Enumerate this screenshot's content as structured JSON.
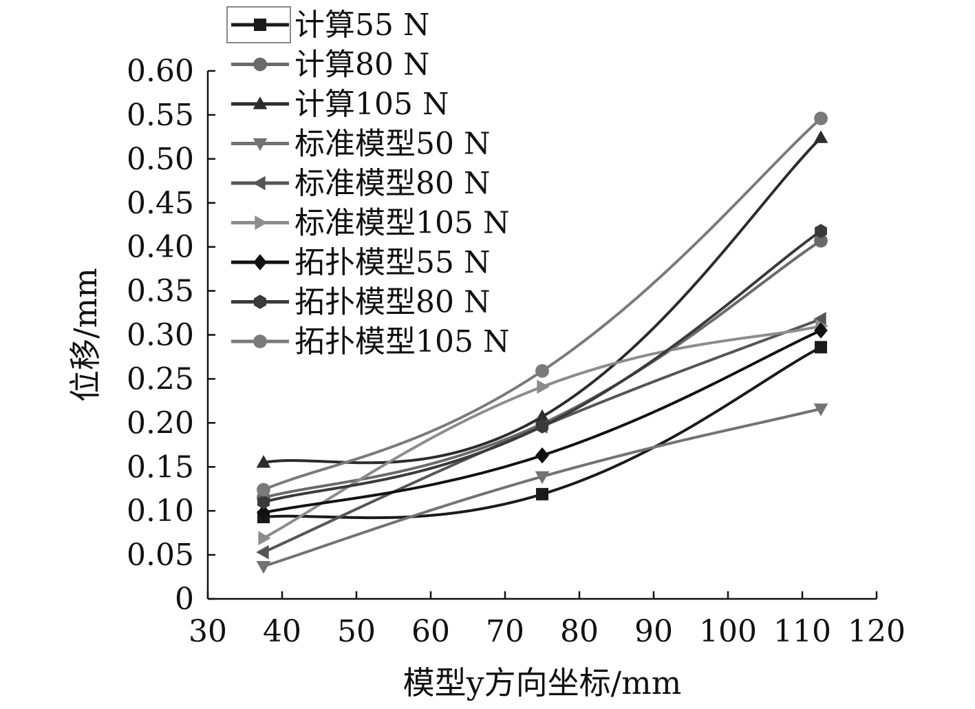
{
  "chart_data": {
    "type": "line",
    "xlabel": "模型y方向坐标/mm",
    "ylabel": "位移/mm",
    "xlim": [
      30,
      120
    ],
    "ylim": [
      0,
      0.6
    ],
    "x_ticks": [
      "30",
      "40",
      "50",
      "60",
      "70",
      "80",
      "90",
      "100",
      "110",
      "120"
    ],
    "y_ticks": [
      "0",
      "0.05",
      "0.10",
      "0.15",
      "0.20",
      "0.25",
      "0.30",
      "0.35",
      "0.40",
      "0.45",
      "0.50",
      "0.55",
      "0.60"
    ],
    "grid": false,
    "legend_position": "top-left",
    "x": [
      37.5,
      75,
      112.5
    ],
    "series": [
      {
        "name": "计算55 N",
        "values": [
          0.093,
          0.119,
          0.286
        ],
        "marker": "square",
        "color": "#1a1a1a"
      },
      {
        "name": "计算80 N",
        "values": [
          0.115,
          0.199,
          0.407
        ],
        "marker": "circle",
        "color": "#6a6a6a"
      },
      {
        "name": "计算105 N",
        "values": [
          0.155,
          0.207,
          0.524
        ],
        "marker": "triangle-up",
        "color": "#2c2c2c"
      },
      {
        "name": "标准模型50 N",
        "values": [
          0.037,
          0.139,
          0.216
        ],
        "marker": "triangle-down",
        "color": "#727272"
      },
      {
        "name": "标准模型80 N",
        "values": [
          0.053,
          0.196,
          0.318
        ],
        "marker": "triangle-left",
        "color": "#555555"
      },
      {
        "name": "标准模型105 N",
        "values": [
          0.069,
          0.241,
          0.31
        ],
        "marker": "triangle-right",
        "color": "#8c8c8c"
      },
      {
        "name": "拓扑模型55 N",
        "values": [
          0.098,
          0.163,
          0.305
        ],
        "marker": "diamond",
        "color": "#111111"
      },
      {
        "name": "拓扑模型80 N",
        "values": [
          0.11,
          0.196,
          0.418
        ],
        "marker": "hexagon",
        "color": "#3a3a3a"
      },
      {
        "name": "拓扑模型105 N",
        "values": [
          0.124,
          0.259,
          0.546
        ],
        "marker": "circle",
        "color": "#7a7a7a"
      }
    ]
  }
}
